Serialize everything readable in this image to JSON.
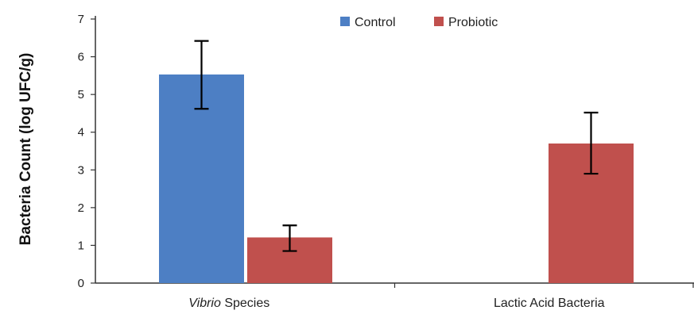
{
  "chart_data": {
    "type": "bar",
    "ylabel": "Bacteria Count (log UFC/g)",
    "xlabel": "",
    "ylim": [
      0,
      7
    ],
    "yticks": [
      "0",
      "1",
      "2",
      "3",
      "4",
      "5",
      "6",
      "7"
    ],
    "categories": [
      {
        "italic": "Vibrio",
        "rest": " Species"
      },
      {
        "italic": "",
        "rest": "Lactic Acid Bacteria"
      }
    ],
    "series": [
      {
        "name": "Control",
        "color": "#4d7fc4",
        "values": [
          5.53,
          null
        ],
        "err_low": [
          4.62,
          null
        ],
        "err_high": [
          6.42,
          null
        ]
      },
      {
        "name": "Probiotic",
        "color": "#c0504d",
        "values": [
          1.21,
          3.7
        ],
        "err_low": [
          0.85,
          2.9
        ],
        "err_high": [
          1.53,
          4.52
        ]
      }
    ],
    "grid": false,
    "legend_position": "top"
  }
}
